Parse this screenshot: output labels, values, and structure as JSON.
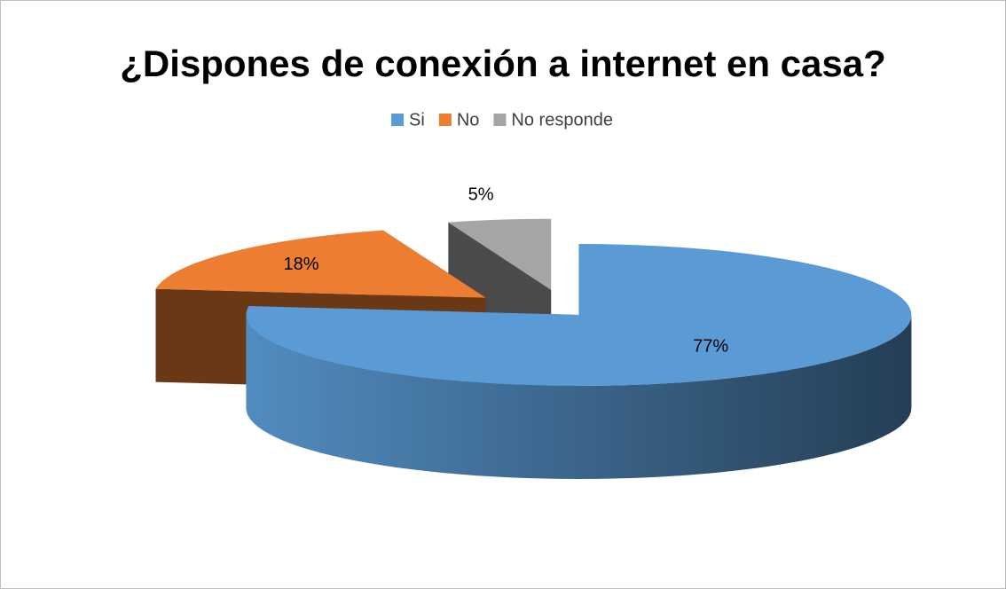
{
  "chart_data": {
    "type": "pie3d",
    "title": "¿Dispones de conexión a internet en casa?",
    "categories": [
      "Si",
      "No",
      "No responde"
    ],
    "values": [
      77,
      18,
      5
    ],
    "value_labels": [
      "77%",
      "18%",
      "5%"
    ],
    "colors": [
      "#5b9bd5",
      "#ed7d31",
      "#a5a5a5"
    ],
    "legend": "top"
  }
}
